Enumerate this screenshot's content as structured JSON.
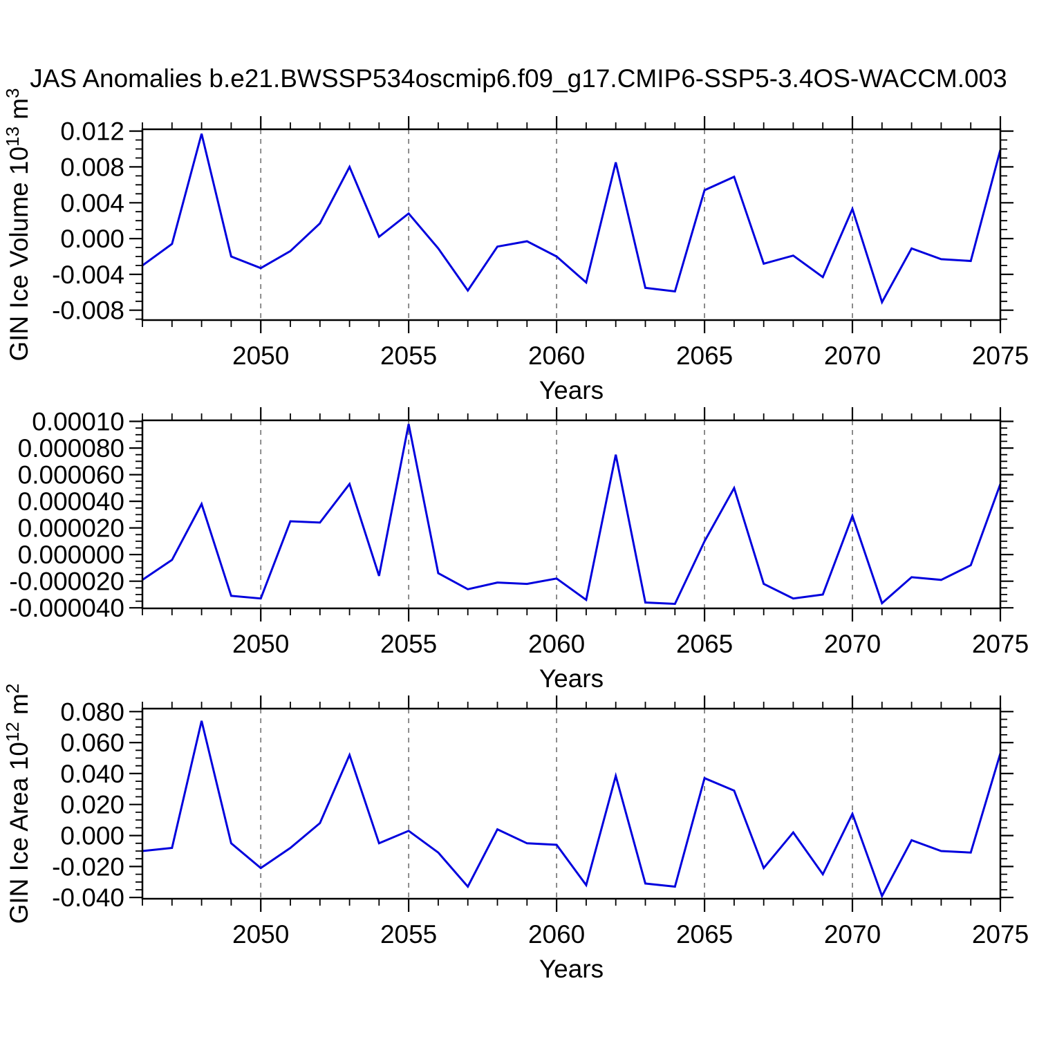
{
  "title": "JAS Anomalies b.e21.BWSSP534oscmip6.f09_g17.CMIP6-SSP5-3.4OS-WACCM.003",
  "line_color": "#0000dd",
  "grid_color": "#7f7f7f",
  "frame_color": "#000000",
  "chart_data": [
    {
      "type": "line",
      "name": "gin-ice-volume",
      "ylabel": "GIN Ice Volume 10^13 m^3",
      "ylabel_parts": [
        {
          "text": "GIN Ice Volume 10"
        },
        {
          "sup": "13"
        },
        {
          "text": " m"
        },
        {
          "sup": "3"
        }
      ],
      "xlabel": "Years",
      "x": [
        2046,
        2047,
        2048,
        2049,
        2050,
        2051,
        2052,
        2053,
        2054,
        2055,
        2056,
        2057,
        2058,
        2059,
        2060,
        2061,
        2062,
        2063,
        2064,
        2065,
        2066,
        2067,
        2068,
        2069,
        2070,
        2071,
        2072,
        2073,
        2074,
        2075
      ],
      "values": [
        -0.003,
        -0.0006,
        0.0117,
        -0.002,
        -0.0033,
        -0.0014,
        0.0017,
        0.008,
        0.0002,
        0.0028,
        -0.0011,
        -0.0058,
        -0.0009,
        -0.0003,
        -0.002,
        -0.0049,
        0.0085,
        -0.0055,
        -0.0059,
        0.0054,
        0.0069,
        -0.0028,
        -0.0019,
        -0.0043,
        0.0033,
        -0.0071,
        -0.0011,
        -0.0023,
        -0.0025,
        0.0099
      ],
      "xlim": [
        2046,
        2075
      ],
      "ylim": [
        -0.0091,
        0.0122
      ],
      "yticks": [
        {
          "v": 0.012,
          "label": "0.012"
        },
        {
          "v": 0.008,
          "label": "0.008"
        },
        {
          "v": 0.004,
          "label": "0.004"
        },
        {
          "v": 0.0,
          "label": "0.000"
        },
        {
          "v": -0.004,
          "label": "-0.004"
        },
        {
          "v": -0.008,
          "label": "-0.008"
        }
      ],
      "y_minor_step": 0.001,
      "xticks": [
        {
          "v": 2050,
          "label": "2050"
        },
        {
          "v": 2055,
          "label": "2055"
        },
        {
          "v": 2060,
          "label": "2060"
        },
        {
          "v": 2065,
          "label": "2065"
        },
        {
          "v": 2070,
          "label": "2070"
        },
        {
          "v": 2075,
          "label": "2075"
        }
      ],
      "x_minor_step": 1,
      "x_dashed_gridlines": [
        2050,
        2055,
        2060,
        2065,
        2070
      ],
      "grid": "vertical-dashed",
      "legend": null
    },
    {
      "type": "line",
      "name": "gin-ice-middle-series",
      "ylabel": "",
      "ylabel_parts": [],
      "xlabel": "Years",
      "x": [
        2046,
        2047,
        2048,
        2049,
        2050,
        2051,
        2052,
        2053,
        2054,
        2055,
        2056,
        2057,
        2058,
        2059,
        2060,
        2061,
        2062,
        2063,
        2064,
        2065,
        2066,
        2067,
        2068,
        2069,
        2070,
        2071,
        2072,
        2073,
        2074,
        2075
      ],
      "values": [
        -1.9e-05,
        -4e-06,
        3.8e-05,
        -3.1e-05,
        -3.3e-05,
        2.5e-05,
        2.4e-05,
        5.3e-05,
        -1.6e-05,
        9.8e-05,
        -1.4e-05,
        -2.6e-05,
        -2.1e-05,
        -2.2e-05,
        -1.8e-05,
        -3.4e-05,
        7.5e-05,
        -3.6e-05,
        -3.7e-05,
        1e-05,
        5e-05,
        -2.2e-05,
        -3.3e-05,
        -3e-05,
        2.9e-05,
        -3.65e-05,
        -1.7e-05,
        -1.9e-05,
        -8e-06,
        5.3e-05
      ],
      "xlim": [
        2046,
        2075
      ],
      "ylim": [
        -4.04e-05,
        0.0001008
      ],
      "yticks": [
        {
          "v": 0.0001,
          "label": "0.00010"
        },
        {
          "v": 8e-05,
          "label": "0.000080"
        },
        {
          "v": 6e-05,
          "label": "0.000060"
        },
        {
          "v": 4e-05,
          "label": "0.000040"
        },
        {
          "v": 2e-05,
          "label": "0.000020"
        },
        {
          "v": 0.0,
          "label": "0.000000"
        },
        {
          "v": -2e-05,
          "label": "-0.000020"
        },
        {
          "v": -4e-05,
          "label": "-0.000040"
        }
      ],
      "y_minor_step": 5e-06,
      "xticks": [
        {
          "v": 2050,
          "label": "2050"
        },
        {
          "v": 2055,
          "label": "2055"
        },
        {
          "v": 2060,
          "label": "2060"
        },
        {
          "v": 2065,
          "label": "2065"
        },
        {
          "v": 2070,
          "label": "2070"
        },
        {
          "v": 2075,
          "label": "2075"
        }
      ],
      "x_minor_step": 1,
      "x_dashed_gridlines": [
        2050,
        2055,
        2060,
        2065,
        2070
      ],
      "grid": "vertical-dashed",
      "legend": null
    },
    {
      "type": "line",
      "name": "gin-ice-area",
      "ylabel": "GIN Ice Area 10^12 m^2",
      "ylabel_parts": [
        {
          "text": "GIN Ice Area 10"
        },
        {
          "sup": "12"
        },
        {
          "text": " m"
        },
        {
          "sup": "2"
        }
      ],
      "xlabel": "Years",
      "x": [
        2046,
        2047,
        2048,
        2049,
        2050,
        2051,
        2052,
        2053,
        2054,
        2055,
        2056,
        2057,
        2058,
        2059,
        2060,
        2061,
        2062,
        2063,
        2064,
        2065,
        2066,
        2067,
        2068,
        2069,
        2070,
        2071,
        2072,
        2073,
        2074,
        2075
      ],
      "values": [
        -0.01,
        -0.008,
        0.074,
        -0.005,
        -0.021,
        -0.008,
        0.008,
        0.052,
        -0.005,
        0.003,
        -0.011,
        -0.033,
        0.004,
        -0.005,
        -0.006,
        -0.032,
        0.0385,
        -0.031,
        -0.033,
        0.037,
        0.029,
        -0.021,
        0.002,
        -0.025,
        0.014,
        -0.039,
        -0.003,
        -0.01,
        -0.011,
        0.053
      ],
      "xlim": [
        2046,
        2075
      ],
      "ylim": [
        -0.0408,
        0.0819
      ],
      "yticks": [
        {
          "v": 0.08,
          "label": "0.080"
        },
        {
          "v": 0.06,
          "label": "0.060"
        },
        {
          "v": 0.04,
          "label": "0.040"
        },
        {
          "v": 0.02,
          "label": "0.020"
        },
        {
          "v": 0.0,
          "label": "0.000"
        },
        {
          "v": -0.02,
          "label": "-0.020"
        },
        {
          "v": -0.04,
          "label": "-0.040"
        }
      ],
      "y_minor_step": 0.005,
      "xticks": [
        {
          "v": 2050,
          "label": "2050"
        },
        {
          "v": 2055,
          "label": "2055"
        },
        {
          "v": 2060,
          "label": "2060"
        },
        {
          "v": 2065,
          "label": "2065"
        },
        {
          "v": 2070,
          "label": "2070"
        },
        {
          "v": 2075,
          "label": "2075"
        }
      ],
      "x_minor_step": 1,
      "x_dashed_gridlines": [
        2050,
        2055,
        2060,
        2065,
        2070
      ],
      "grid": "vertical-dashed",
      "legend": null
    }
  ]
}
